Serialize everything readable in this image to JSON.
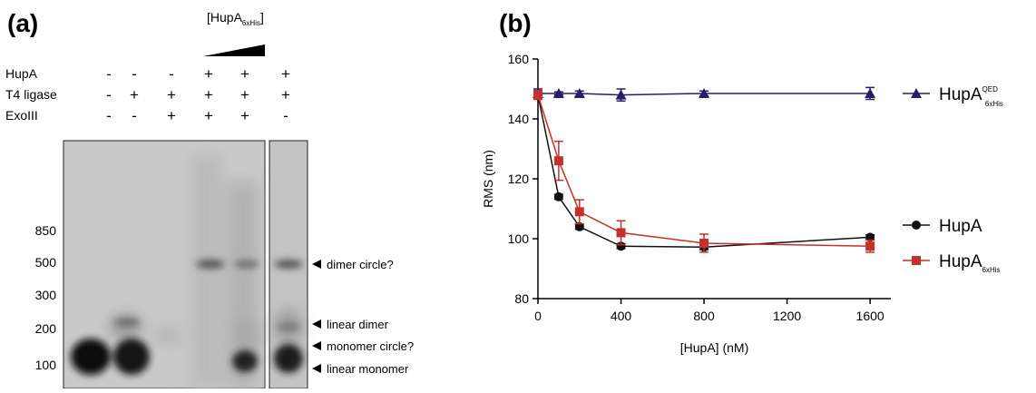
{
  "panel_a": {
    "label": "(a)",
    "titration": {
      "text": "[HupA",
      "sub": "6xHis",
      "close": "]"
    },
    "rows": [
      {
        "name": "HupA",
        "signs": [
          "-",
          "-",
          "-",
          "+",
          "+",
          "+"
        ]
      },
      {
        "name": "T4 ligase",
        "signs": [
          "-",
          "+",
          "+",
          "+",
          "+",
          "+"
        ]
      },
      {
        "name": "ExoIII",
        "signs": [
          "-",
          "-",
          "+",
          "+",
          "+",
          "-"
        ]
      }
    ],
    "markers": [
      "850",
      "500",
      "300",
      "200",
      "100"
    ],
    "bands": [
      "dimer circle?",
      "linear dimer",
      "monomer circle?",
      "linear monomer"
    ]
  },
  "chart_data": {
    "type": "line",
    "panel_label": "(b)",
    "xlabel": "[HupA] (nM)",
    "ylabel": "RMS  (nm)",
    "x": [
      0,
      100,
      200,
      400,
      800,
      1600
    ],
    "xlim": [
      0,
      1700
    ],
    "xticks": [
      0,
      400,
      800,
      1200,
      1600
    ],
    "ylim": [
      80,
      160
    ],
    "yticks": [
      80,
      100,
      120,
      140,
      160
    ],
    "series": [
      {
        "name": "HupA",
        "name_sup": "QED",
        "name_sub": "6xHis",
        "color": "#2b1b6b",
        "marker": "triangle",
        "values": [
          148.5,
          148.5,
          148.5,
          148,
          148.5,
          148.5
        ],
        "errors": [
          1.5,
          0.5,
          0.8,
          2,
          0.8,
          2
        ]
      },
      {
        "name": "HupA",
        "color": "#111111",
        "marker": "circle",
        "values": [
          148,
          114,
          104,
          97.5,
          97.2,
          100.5
        ],
        "errors": [
          1,
          0.8,
          0.8,
          0.8,
          0.8,
          0.8
        ]
      },
      {
        "name": "HupA",
        "name_sub": "6xHis",
        "color": "#c4302b",
        "marker": "square",
        "values": [
          148,
          126,
          109,
          102,
          98.5,
          97.5
        ],
        "errors": [
          1.5,
          6.5,
          4,
          4,
          3,
          2
        ]
      }
    ]
  }
}
